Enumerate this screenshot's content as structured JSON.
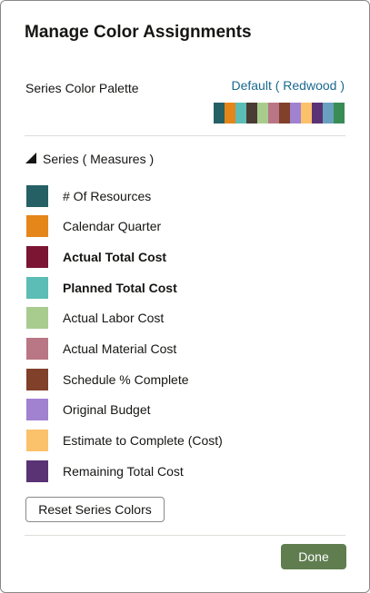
{
  "dialog": {
    "title": "Manage Color Assignments"
  },
  "palette": {
    "label": "Series Color Palette",
    "link_label": "Default ( Redwood )",
    "colors": [
      "#256065",
      "#e5861a",
      "#5bbdb5",
      "#4a3b33",
      "#a8cc8e",
      "#b97684",
      "#80402a",
      "#a182d1",
      "#fbc16b",
      "#5a3374",
      "#6aa0bf",
      "#3a8c55"
    ]
  },
  "series_section": {
    "header": "Series ( Measures )",
    "items": [
      {
        "label": "# Of Resources",
        "color": "#256065",
        "bold": false
      },
      {
        "label": "Calendar Quarter",
        "color": "#e5861a",
        "bold": false
      },
      {
        "label": "Actual Total Cost",
        "color": "#7c1533",
        "bold": true
      },
      {
        "label": "Planned Total Cost",
        "color": "#5bbdb5",
        "bold": true
      },
      {
        "label": "Actual Labor Cost",
        "color": "#a8cc8e",
        "bold": false
      },
      {
        "label": "Actual Material Cost",
        "color": "#b97684",
        "bold": false
      },
      {
        "label": "Schedule % Complete",
        "color": "#80402a",
        "bold": false
      },
      {
        "label": "Original Budget",
        "color": "#a182d1",
        "bold": false
      },
      {
        "label": "Estimate to Complete (Cost)",
        "color": "#fbc16b",
        "bold": false
      },
      {
        "label": "Remaining Total Cost",
        "color": "#5a3374",
        "bold": false
      }
    ]
  },
  "buttons": {
    "reset_label": "Reset Series Colors",
    "done_label": "Done"
  }
}
